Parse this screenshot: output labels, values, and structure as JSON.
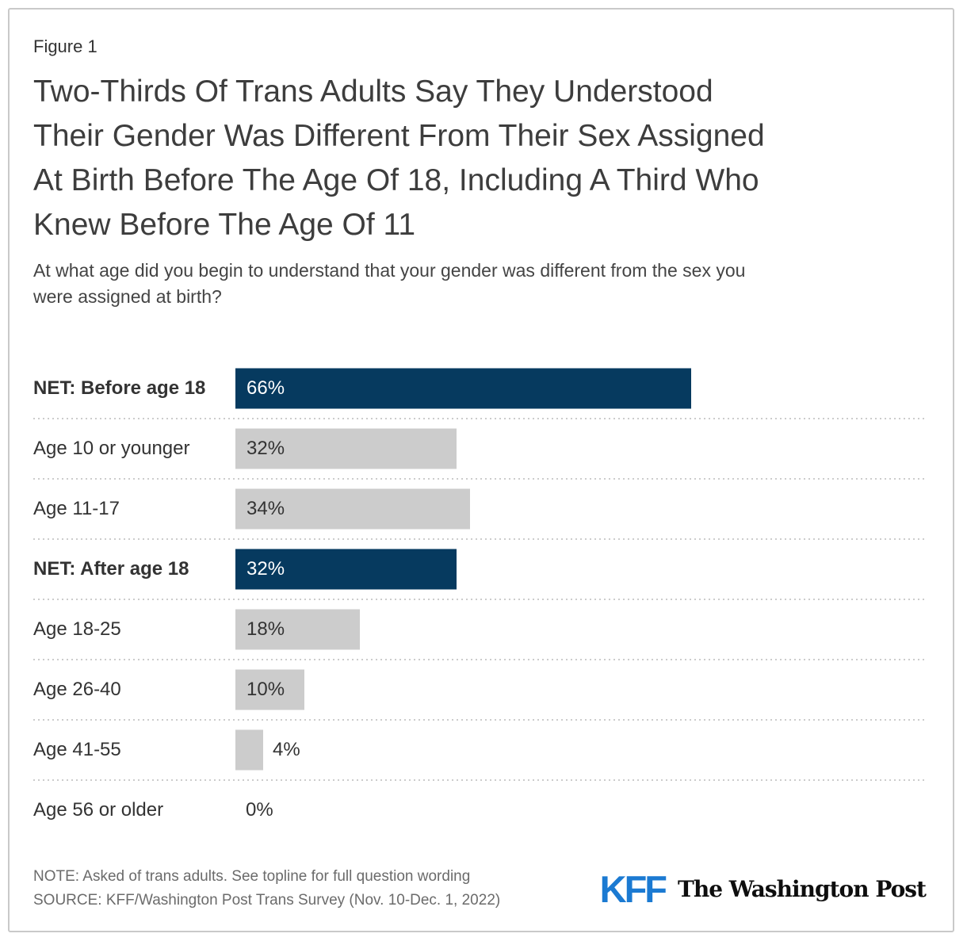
{
  "header": {
    "figure_label": "Figure 1",
    "title_lines": [
      "Two-Thirds Of Trans Adults Say They Understood",
      "Their Gender Was Different From Their Sex Assigned",
      "At Birth Before The Age Of 18, Including A Third Who",
      "Knew Before The Age Of 11"
    ],
    "subtitle_lines": [
      "At what age did you begin to understand that your gender was different from the sex you",
      "were assigned at birth?"
    ]
  },
  "chart_data": {
    "type": "bar",
    "orientation": "horizontal",
    "title": "Two-Thirds Of Trans Adults Say They Understood Their Gender Was Different From Their Sex Assigned At Birth Before The Age Of 18, Including A Third Who Knew Before The Age Of 11",
    "question": "At what age did you begin to understand that your gender was different from the sex you were assigned at birth?",
    "value_unit": "percent",
    "xlim": [
      0,
      100
    ],
    "grid": false,
    "legend": false,
    "categories": [
      "NET: Before age 18",
      "Age 10 or younger",
      "Age 11-17",
      "NET: After age 18",
      "Age 18-25",
      "Age 26-40",
      "Age 41-55",
      "Age 56 or older"
    ],
    "values": [
      66,
      32,
      34,
      32,
      18,
      10,
      4,
      0
    ],
    "rows": [
      {
        "label": "NET: Before age 18",
        "pct": 66,
        "value_label": "66%",
        "emphasis": true,
        "label_position": "inside"
      },
      {
        "label": "Age 10 or younger",
        "pct": 32,
        "value_label": "32%",
        "emphasis": false,
        "label_position": "inside"
      },
      {
        "label": "Age 11-17",
        "pct": 34,
        "value_label": "34%",
        "emphasis": false,
        "label_position": "inside"
      },
      {
        "label": "NET: After age 18",
        "pct": 32,
        "value_label": "32%",
        "emphasis": true,
        "label_position": "inside"
      },
      {
        "label": "Age 18-25",
        "pct": 18,
        "value_label": "18%",
        "emphasis": false,
        "label_position": "inside"
      },
      {
        "label": "Age 26-40",
        "pct": 10,
        "value_label": "10%",
        "emphasis": false,
        "label_position": "inside"
      },
      {
        "label": "Age 41-55",
        "pct": 4,
        "value_label": "4%",
        "emphasis": false,
        "label_position": "outside"
      },
      {
        "label": "Age 56 or older",
        "pct": 0,
        "value_label": "0%",
        "emphasis": false,
        "label_position": "start"
      }
    ],
    "colors": {
      "emphasis_bar": "#063a5f",
      "default_bar": "#cccccc",
      "emphasis_text": "#ffffff",
      "default_text": "#333333"
    }
  },
  "footer": {
    "note": "NOTE: Asked of trans adults. See topline for full question wording",
    "source": "SOURCE: KFF/Washington Post Trans Survey (Nov. 10-Dec. 1, 2022)",
    "kff_logo_text": "KFF",
    "wapo_logo_text": "The Washington Post"
  }
}
